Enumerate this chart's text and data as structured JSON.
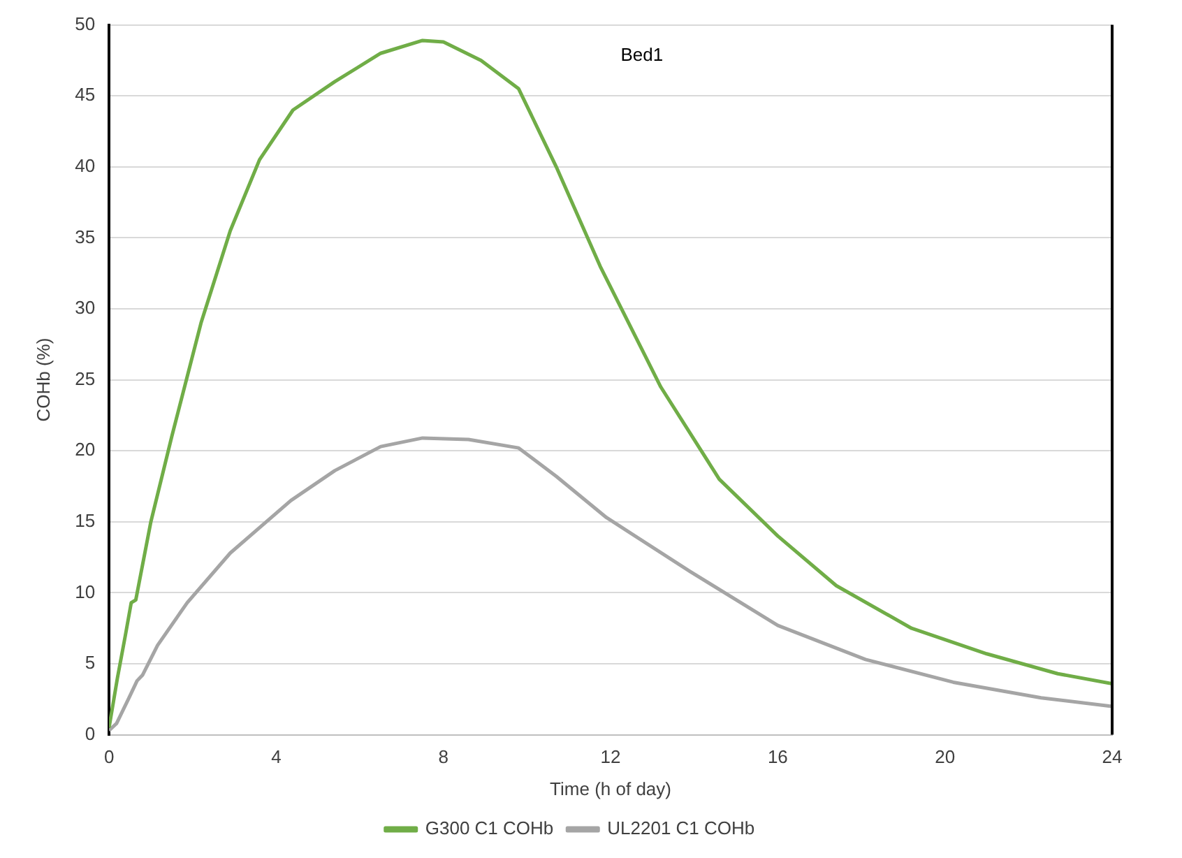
{
  "chart_data": {
    "type": "line",
    "xlabel": "Time (h of day)",
    "ylabel": "COHb (%)",
    "annotations": [
      "Bed1"
    ],
    "xlim": [
      0,
      24
    ],
    "xticks": [
      0,
      4,
      8,
      12,
      16,
      20,
      24
    ],
    "ylim": [
      0,
      50
    ],
    "yticks": [
      0,
      5,
      10,
      15,
      20,
      25,
      30,
      35,
      40,
      45,
      50
    ],
    "grid": "y",
    "legend": "bottom",
    "marker": "none",
    "line_style": "solid",
    "ref_lines": [
      {
        "axis": "x",
        "value": 24,
        "color": "#000000"
      }
    ],
    "series": [
      {
        "name": "G300 C1 COHb",
        "color": "#70ad47",
        "x": [
          0,
          0.2,
          0.39,
          0.53,
          0.64,
          1,
          1.5,
          2.2,
          2.9,
          3.6,
          4.4,
          5.4,
          6.5,
          7.5,
          8,
          8.9,
          9.8,
          10.7,
          11.75,
          13.2,
          14.6,
          16,
          17.4,
          19.2,
          21,
          22.7,
          24
        ],
        "values": [
          0.5,
          4,
          7,
          9.3,
          9.5,
          15,
          21,
          29,
          35.5,
          40.5,
          44,
          46,
          48,
          48.9,
          48.8,
          47.5,
          45.5,
          40,
          33,
          24.5,
          18,
          14,
          10.5,
          7.5,
          5.7,
          4.3,
          3.6
        ]
      },
      {
        "name": "UL2201 C1 COHb",
        "color": "#a5a5a5",
        "x": [
          0,
          0.18,
          0.46,
          0.67,
          0.8,
          1.16,
          1.87,
          2.9,
          4.35,
          5.4,
          6.5,
          7.5,
          8.6,
          9.8,
          10.7,
          11.9,
          13.9,
          16,
          18.1,
          20.2,
          22.3,
          24
        ],
        "values": [
          0.3,
          0.8,
          2.5,
          3.8,
          4.2,
          6.3,
          9.3,
          12.8,
          16.5,
          18.6,
          20.3,
          20.9,
          20.8,
          20.2,
          18.2,
          15.3,
          11.5,
          7.7,
          5.3,
          3.7,
          2.6,
          2
        ]
      }
    ]
  }
}
